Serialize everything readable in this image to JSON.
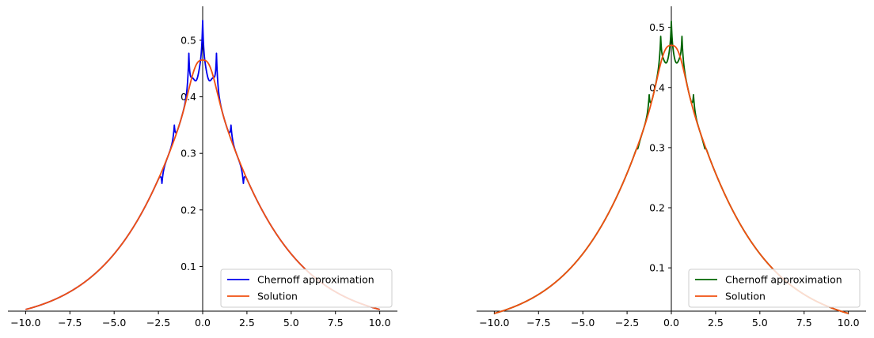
{
  "chart_data": [
    {
      "type": "line",
      "title": "",
      "xlabel": "",
      "ylabel": "",
      "xlim": [
        -11.0,
        11.0
      ],
      "ylim": [
        0.021,
        0.56
      ],
      "xticks": [
        -10.0,
        -7.5,
        -5.0,
        -2.5,
        0.0,
        2.5,
        5.0,
        7.5,
        10.0
      ],
      "xtick_labels": [
        "−10.0",
        "−7.5",
        "−5.0",
        "−2.5",
        "0.0",
        "2.5",
        "5.0",
        "7.5",
        "10.0"
      ],
      "yticks": [
        0.1,
        0.2,
        0.3,
        0.4,
        0.5
      ],
      "ytick_labels": [
        "0.1",
        "0.2",
        "0.3",
        "0.4",
        "0.5"
      ],
      "spines": "centered-y-axis",
      "legend": {
        "position": "lower-right"
      },
      "series": [
        {
          "name": "Chernoff approximation",
          "color": "#0000ee",
          "base_curve": "0.465*exp(-0.2*|x|^1.15)",
          "spikes": [
            {
              "x": -2.3,
              "y": 0.247
            },
            {
              "x": -1.6,
              "y": 0.35
            },
            {
              "x": -0.78,
              "y": 0.477
            },
            {
              "x": 0.0,
              "y": 0.535
            },
            {
              "x": 0.78,
              "y": 0.477
            },
            {
              "x": 1.6,
              "y": 0.35
            },
            {
              "x": 2.3,
              "y": 0.247
            }
          ],
          "dips": [
            {
              "x": -0.4,
              "y": 0.428
            },
            {
              "x": 0.4,
              "y": 0.428
            }
          ]
        },
        {
          "name": "Solution",
          "color": "#f05010",
          "x_range": [
            -10.0,
            10.0
          ],
          "peak": {
            "x": 0.0,
            "y": 0.465
          },
          "end_value": 0.041
        }
      ]
    },
    {
      "type": "line",
      "title": "",
      "xlabel": "",
      "ylabel": "",
      "xlim": [
        -11.0,
        11.0
      ],
      "ylim": [
        0.028,
        0.535
      ],
      "xticks": [
        -10.0,
        -7.5,
        -5.0,
        -2.5,
        0.0,
        2.5,
        5.0,
        7.5,
        10.0
      ],
      "xtick_labels": [
        "−10.0",
        "−7.5",
        "−5.0",
        "−2.5",
        "0.0",
        "2.5",
        "5.0",
        "7.5",
        "10.0"
      ],
      "yticks": [
        0.1,
        0.2,
        0.3,
        0.4,
        0.5
      ],
      "ytick_labels": [
        "0.1",
        "0.2",
        "0.3",
        "0.4",
        "0.5"
      ],
      "spines": "centered-y-axis",
      "legend": {
        "position": "lower-right"
      },
      "series": [
        {
          "name": "Chernoff approximation",
          "color": "#006400",
          "base_curve": "0.465*exp(-0.2*|x|^1.15)",
          "spikes": [
            {
              "x": -1.9,
              "y": 0.298
            },
            {
              "x": -1.25,
              "y": 0.388
            },
            {
              "x": -0.6,
              "y": 0.485
            },
            {
              "x": 0.0,
              "y": 0.51
            },
            {
              "x": 0.6,
              "y": 0.485
            },
            {
              "x": 1.25,
              "y": 0.388
            },
            {
              "x": 1.9,
              "y": 0.298
            }
          ],
          "dips": [
            {
              "x": -0.3,
              "y": 0.44
            },
            {
              "x": 0.3,
              "y": 0.44
            }
          ]
        },
        {
          "name": "Solution",
          "color": "#f05010",
          "x_range": [
            -10.0,
            10.0
          ],
          "peak": {
            "x": 0.0,
            "y": 0.47
          },
          "end_value": 0.041
        }
      ]
    }
  ]
}
